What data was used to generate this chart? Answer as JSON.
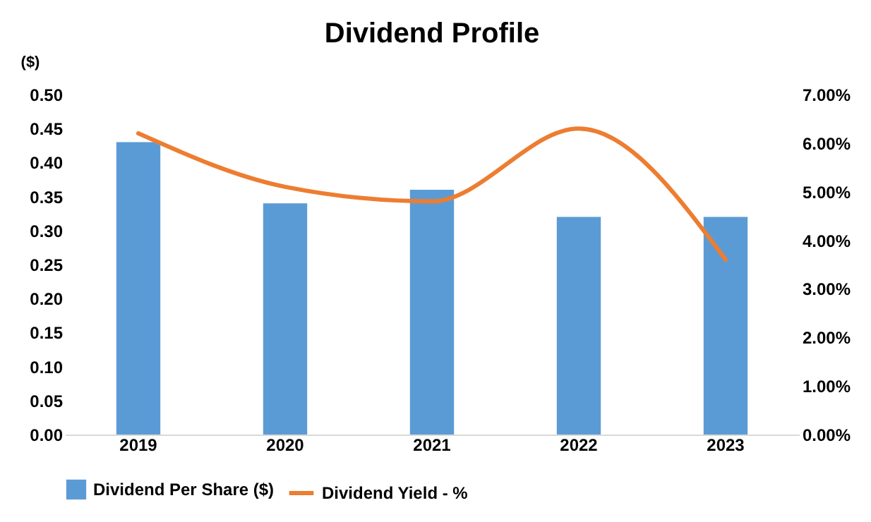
{
  "chart_data": {
    "type": "bar",
    "title": "Dividend Profile",
    "ylabel": "($)",
    "categories": [
      "2019",
      "2020",
      "2021",
      "2022",
      "2023"
    ],
    "series": [
      {
        "name": "Dividend Per Share ($)",
        "color": "#5b9bd5",
        "values": [
          0.43,
          0.34,
          0.36,
          0.32,
          0.32
        ]
      },
      {
        "name": "Dividend Yield - %",
        "type": "line",
        "axis": "y2",
        "color": "#ed7d31",
        "values": [
          6.2,
          5.1,
          4.8,
          6.3,
          3.6
        ]
      }
    ],
    "ylim": [
      0,
      0.5
    ],
    "yticks": [
      {
        "value": 0,
        "label": "0.00"
      },
      {
        "value": 0.05,
        "label": "0.05"
      },
      {
        "value": 0.1,
        "label": "0.10"
      },
      {
        "value": 0.15,
        "label": "0.15"
      },
      {
        "value": 0.2,
        "label": "0.20"
      },
      {
        "value": 0.25,
        "label": "0.25"
      },
      {
        "value": 0.3,
        "label": "0.30"
      },
      {
        "value": 0.35,
        "label": "0.35"
      },
      {
        "value": 0.4,
        "label": "0.40"
      },
      {
        "value": 0.45,
        "label": "0.45"
      },
      {
        "value": 0.5,
        "label": "0.50"
      }
    ],
    "y2lim": [
      0,
      7
    ],
    "y2ticks": [
      {
        "value": 0,
        "label": "0.00%"
      },
      {
        "value": 1,
        "label": "1.00%"
      },
      {
        "value": 2,
        "label": "2.00%"
      },
      {
        "value": 3,
        "label": "3.00%"
      },
      {
        "value": 4,
        "label": "4.00%"
      },
      {
        "value": 5,
        "label": "5.00%"
      },
      {
        "value": 6,
        "label": "6.00%"
      },
      {
        "value": 7,
        "label": "7.00%"
      }
    ],
    "legend": "bottom",
    "grid": false,
    "marker": "none",
    "line_style": "solid"
  }
}
